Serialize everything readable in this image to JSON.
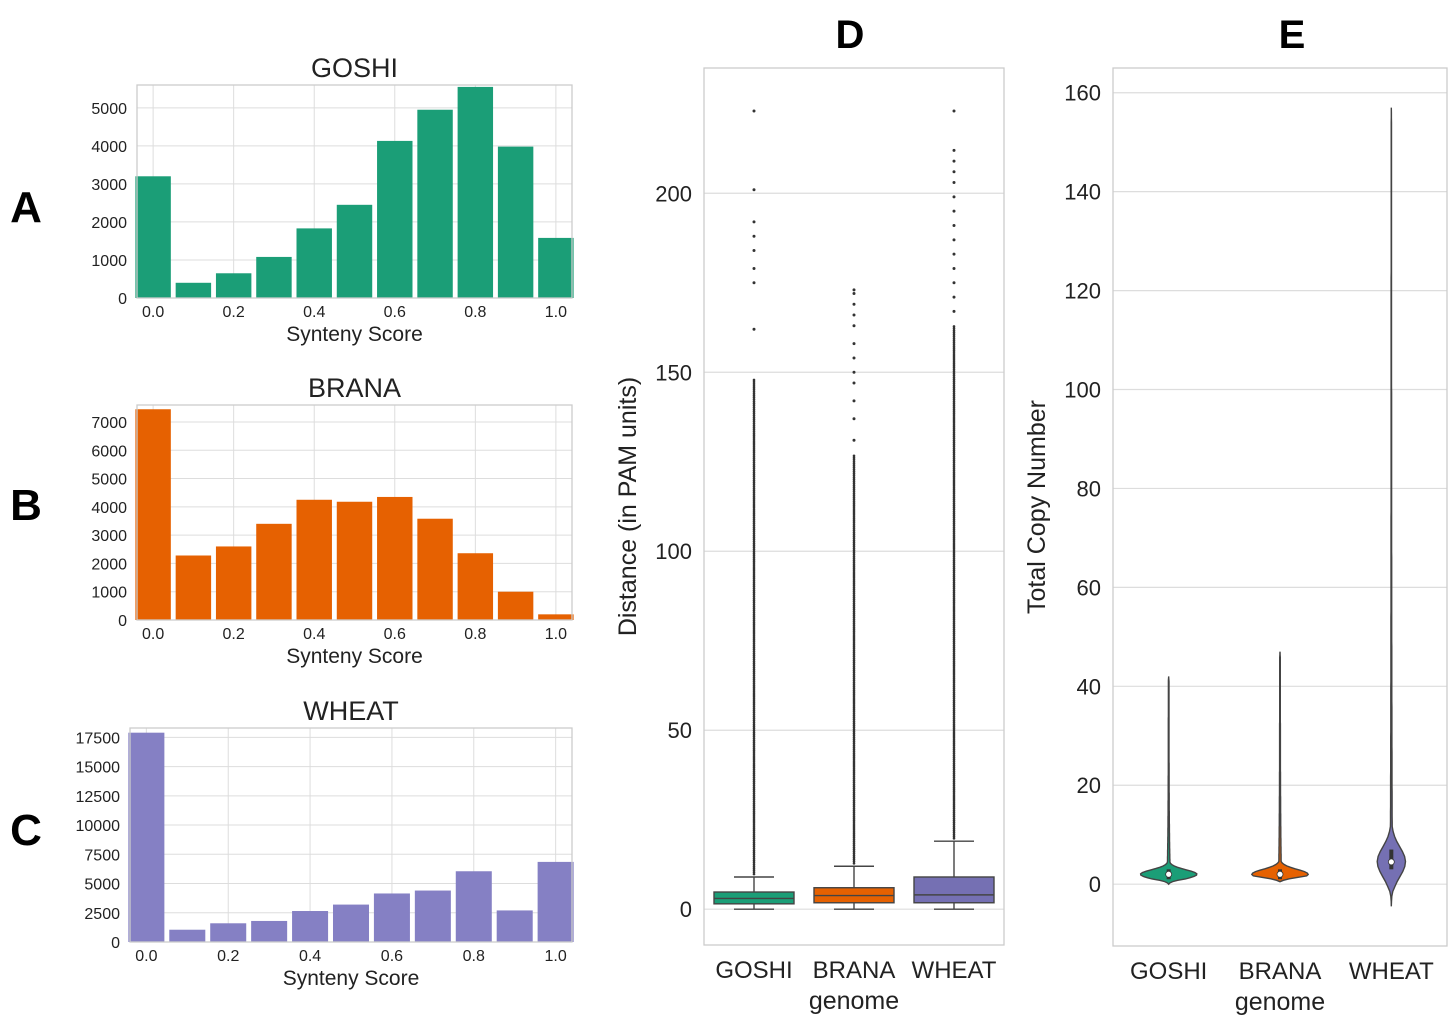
{
  "colors": {
    "goshi": "#1b9e77",
    "brana": "#e66101",
    "wheat": "#7570b3",
    "grid": "#dddddd",
    "frame": "#cccccc",
    "text": "#222222"
  },
  "chart_data": [
    {
      "id": "A",
      "panel_label": "A",
      "type": "bar",
      "title": "GOSHI",
      "xlabel": "Synteny Score",
      "ylabel": "",
      "color": "#1b9e77",
      "bins": [
        0.0,
        0.1,
        0.2,
        0.3,
        0.4,
        0.5,
        0.6,
        0.7,
        0.8,
        0.9,
        1.0
      ],
      "values": [
        3200,
        400,
        650,
        1080,
        1830,
        2450,
        4130,
        4950,
        5550,
        3980,
        1580
      ],
      "xlim": [
        -0.04,
        1.04
      ],
      "ylim": [
        0,
        5600
      ],
      "xticks": [
        0.0,
        0.2,
        0.4,
        0.6,
        0.8,
        1.0
      ],
      "xtick_labels": [
        "0.0",
        "0.2",
        "0.4",
        "0.6",
        "0.8",
        "1.0"
      ],
      "yticks": [
        0,
        1000,
        2000,
        3000,
        4000,
        5000
      ],
      "ytick_labels": [
        "0",
        "1000",
        "2000",
        "3000",
        "4000",
        "5000"
      ],
      "grid": true
    },
    {
      "id": "B",
      "panel_label": "B",
      "type": "bar",
      "title": "BRANA",
      "xlabel": "Synteny Score",
      "ylabel": "",
      "color": "#e66101",
      "bins": [
        0.0,
        0.1,
        0.2,
        0.3,
        0.4,
        0.5,
        0.6,
        0.7,
        0.8,
        0.9,
        1.0
      ],
      "values": [
        7450,
        2280,
        2600,
        3400,
        4250,
        4180,
        4350,
        3580,
        2360,
        1000,
        200
      ],
      "xlim": [
        -0.04,
        1.04
      ],
      "ylim": [
        0,
        7600
      ],
      "xticks": [
        0.0,
        0.2,
        0.4,
        0.6,
        0.8,
        1.0
      ],
      "xtick_labels": [
        "0.0",
        "0.2",
        "0.4",
        "0.6",
        "0.8",
        "1.0"
      ],
      "yticks": [
        0,
        1000,
        2000,
        3000,
        4000,
        5000,
        6000,
        7000
      ],
      "ytick_labels": [
        "0",
        "1000",
        "2000",
        "3000",
        "4000",
        "5000",
        "6000",
        "7000"
      ],
      "grid": true
    },
    {
      "id": "C",
      "panel_label": "C",
      "type": "bar",
      "title": "WHEAT",
      "xlabel": "Synteny Score",
      "ylabel": "",
      "color": "#8580c4",
      "bins": [
        0.0,
        0.1,
        0.2,
        0.3,
        0.4,
        0.5,
        0.6,
        0.7,
        0.8,
        0.9,
        1.0
      ],
      "values": [
        17900,
        1050,
        1600,
        1800,
        2650,
        3200,
        4150,
        4400,
        6050,
        2700,
        6850
      ],
      "xlim": [
        -0.04,
        1.04
      ],
      "ylim": [
        0,
        18300
      ],
      "xticks": [
        0.0,
        0.2,
        0.4,
        0.6,
        0.8,
        1.0
      ],
      "xtick_labels": [
        "0.0",
        "0.2",
        "0.4",
        "0.6",
        "0.8",
        "1.0"
      ],
      "yticks": [
        0,
        2500,
        5000,
        7500,
        10000,
        12500,
        15000,
        17500
      ],
      "ytick_labels": [
        "0",
        "2500",
        "5000",
        "7500",
        "10000",
        "12500",
        "15000",
        "17500"
      ],
      "grid": true
    },
    {
      "id": "D",
      "panel_label": "D",
      "type": "box",
      "title": "",
      "xlabel": "genome",
      "ylabel": "Distance (in PAM units)",
      "categories": [
        "GOSHI",
        "BRANA",
        "WHEAT"
      ],
      "colors": [
        "#1b9e77",
        "#e66101",
        "#7570b3"
      ],
      "ylim": [
        -10,
        235
      ],
      "yticks": [
        0,
        50,
        100,
        150,
        200
      ],
      "ytick_labels": [
        "0",
        "50",
        "100",
        "150",
        "200"
      ],
      "boxes": [
        {
          "name": "GOSHI",
          "whisker_low": 0,
          "q1": 1.5,
          "median": 3,
          "q3": 4.8,
          "whisker_high": 9,
          "outlier_dense_max": 148,
          "outliers": [
            162,
            175,
            179,
            184,
            188,
            192,
            201,
            223
          ]
        },
        {
          "name": "BRANA",
          "whisker_low": 0,
          "q1": 1.8,
          "median": 3.8,
          "q3": 6,
          "whisker_high": 12,
          "outlier_dense_max": 127,
          "outliers": [
            131,
            137,
            142,
            147,
            150,
            154,
            158,
            163,
            166,
            169,
            172,
            173
          ]
        },
        {
          "name": "WHEAT",
          "whisker_low": 0,
          "q1": 1.8,
          "median": 4,
          "q3": 9,
          "whisker_high": 19,
          "outlier_dense_max": 163,
          "outliers": [
            167,
            171,
            175,
            179,
            183,
            187,
            191,
            195,
            199,
            203,
            206,
            209,
            212,
            223
          ]
        }
      ],
      "grid": true
    },
    {
      "id": "E",
      "panel_label": "E",
      "type": "violin",
      "title": "",
      "xlabel": "genome",
      "ylabel": "Total Copy Number",
      "categories": [
        "GOSHI",
        "BRANA",
        "WHEAT"
      ],
      "colors": [
        "#1b9e77",
        "#e66101",
        "#7570b3"
      ],
      "ylim": [
        -12.5,
        165
      ],
      "yticks": [
        0,
        20,
        40,
        60,
        80,
        100,
        120,
        140,
        160
      ],
      "ytick_labels": [
        "0",
        "20",
        "40",
        "60",
        "80",
        "100",
        "120",
        "140",
        "160"
      ],
      "violins": [
        {
          "name": "GOSHI",
          "min": 0,
          "max": 42,
          "median": 2,
          "q1": 1,
          "q3": 3
        },
        {
          "name": "BRANA",
          "min": 0.5,
          "max": 47,
          "median": 2,
          "q1": 1,
          "q3": 3
        },
        {
          "name": "WHEAT",
          "min": -4.5,
          "max": 157,
          "median": 4.5,
          "q1": 3,
          "q3": 7
        }
      ],
      "grid": true
    }
  ]
}
